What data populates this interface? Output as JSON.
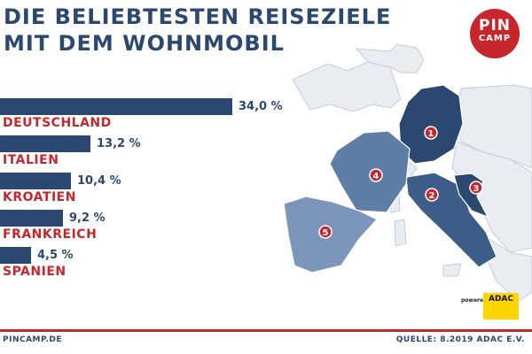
{
  "title_line1": "DIE BELIEBTESTEN REISEZIELE",
  "title_line2": "MIT DEM WOHNMOBIL",
  "logo": {
    "line1": "PIN",
    "line2": "CAMP"
  },
  "footer": {
    "left": "PINCAMP.DE",
    "right": "QUELLE: 8.2019 ADAC E.V."
  },
  "powered_by": {
    "text": "powered by",
    "brand": "ADAC"
  },
  "colors": {
    "primary": "#2a4870",
    "accent": "#c8262d",
    "map_land": "#e9edf2",
    "map_rank2": "#3c5d88",
    "map_rank4": "#5f7ea6",
    "map_rank5": "#7b96ba"
  },
  "chart_data": {
    "type": "bar",
    "orientation": "horizontal",
    "title": "DIE BELIEBTESTEN REISEZIELE MIT DEM WOHNMOBIL",
    "categories": [
      "DEUTSCHLAND",
      "ITALIEN",
      "KROATIEN",
      "FRANKREICH",
      "SPANIEN"
    ],
    "values": [
      34.0,
      13.2,
      10.4,
      9.2,
      4.5
    ],
    "value_labels": [
      "34,0 %",
      "13,2 %",
      "10,4 %",
      "9,2 %",
      "4,5 %"
    ],
    "ranks": [
      "1",
      "2",
      "3",
      "4",
      "5"
    ],
    "unit": "%",
    "xlim": [
      0,
      34.0
    ]
  }
}
